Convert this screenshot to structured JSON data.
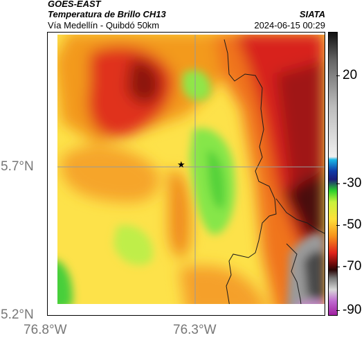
{
  "header": {
    "source": "GOES-EAST",
    "product": "Temperatura de Brillo CH13",
    "route": "Vía Medellín - Quibdó 50km",
    "agency": "SIATA",
    "timestamp": "2024-06-15 00:29"
  },
  "axes": {
    "lat_ticks": [
      "5.7°N",
      "5.2°N"
    ],
    "lon_ticks": [
      "76.8°W",
      "76.3°W"
    ]
  },
  "colorbar": {
    "ticks": [
      "20",
      "-30",
      "-50",
      "-70",
      "-90"
    ]
  },
  "marker": {
    "symbol": "★"
  },
  "colors": {
    "warm_yellow": "#fde24a",
    "orange": "#f39a1f",
    "red": "#d8201b",
    "dark_red": "#6a0d0d",
    "green": "#7fe34a",
    "gray": "#7a7a7a"
  }
}
